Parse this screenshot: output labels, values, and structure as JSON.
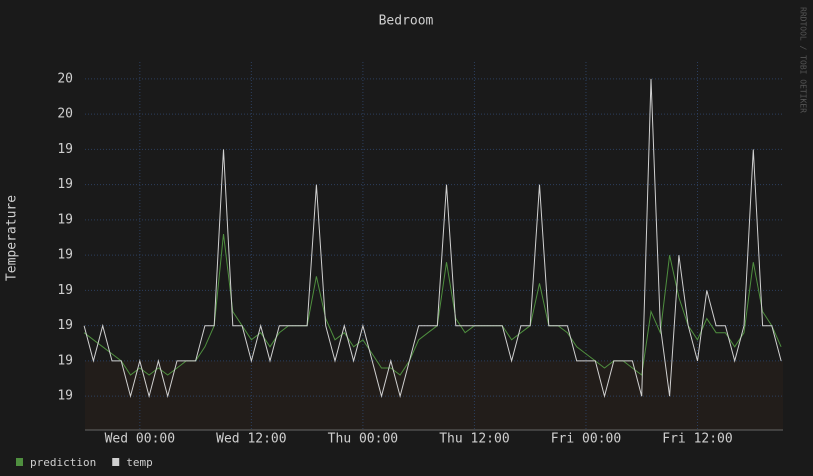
{
  "chart_data": {
    "type": "line",
    "title": "Bedroom",
    "y_label": "Temperature",
    "watermark": "RRDTOOL / TOBI OETIKER",
    "x": [
      -6,
      -5,
      -4,
      -3,
      -2,
      -1,
      0,
      1,
      2,
      3,
      4,
      5,
      6,
      7,
      8,
      9,
      10,
      11,
      12,
      13,
      14,
      15,
      16,
      17,
      18,
      19,
      20,
      21,
      22,
      23,
      24,
      25,
      26,
      27,
      28,
      29,
      30,
      31,
      32,
      33,
      34,
      35,
      36,
      37,
      38,
      39,
      40,
      41,
      42,
      43,
      44,
      45,
      46,
      47,
      48,
      49,
      50,
      51,
      52,
      53,
      54,
      55,
      56,
      57,
      58,
      59,
      60,
      61,
      62,
      63,
      64,
      65,
      66,
      67,
      68,
      69
    ],
    "series": [
      {
        "name": "prediction",
        "color": "#4f8f3f",
        "values": [
          19.19,
          19.18,
          19.17,
          19.16,
          19.15,
          19.13,
          19.14,
          19.13,
          19.14,
          19.13,
          19.14,
          19.15,
          19.15,
          19.17,
          19.2,
          19.33,
          19.22,
          19.2,
          19.18,
          19.19,
          19.17,
          19.19,
          19.2,
          19.2,
          19.2,
          19.27,
          19.21,
          19.18,
          19.19,
          19.17,
          19.18,
          19.16,
          19.14,
          19.14,
          19.13,
          19.15,
          19.18,
          19.19,
          19.2,
          19.29,
          19.21,
          19.19,
          19.2,
          19.2,
          19.2,
          19.2,
          19.18,
          19.19,
          19.2,
          19.26,
          19.2,
          19.2,
          19.19,
          19.17,
          19.16,
          19.15,
          19.14,
          19.15,
          19.15,
          19.14,
          19.13,
          19.22,
          19.19,
          19.3,
          19.24,
          19.2,
          19.18,
          19.21,
          19.19,
          19.19,
          19.17,
          19.19,
          19.29,
          19.22,
          19.2,
          19.17
        ]
      },
      {
        "name": "temp",
        "color": "#d0d0d0",
        "values": [
          19.2,
          19.15,
          19.2,
          19.15,
          19.15,
          19.1,
          19.15,
          19.1,
          19.15,
          19.1,
          19.15,
          19.15,
          19.15,
          19.2,
          19.2,
          19.45,
          19.2,
          19.2,
          19.15,
          19.2,
          19.15,
          19.2,
          19.2,
          19.2,
          19.2,
          19.4,
          19.2,
          19.15,
          19.2,
          19.15,
          19.2,
          19.15,
          19.1,
          19.15,
          19.1,
          19.15,
          19.2,
          19.2,
          19.2,
          19.4,
          19.2,
          19.2,
          19.2,
          19.2,
          19.2,
          19.2,
          19.15,
          19.2,
          19.2,
          19.4,
          19.2,
          19.2,
          19.2,
          19.15,
          19.15,
          19.15,
          19.1,
          19.15,
          19.15,
          19.15,
          19.1,
          19.55,
          19.2,
          19.1,
          19.3,
          19.2,
          19.15,
          19.25,
          19.2,
          19.2,
          19.15,
          19.2,
          19.45,
          19.2,
          19.2,
          19.15
        ]
      }
    ],
    "xlim": [
      -5.9,
      69.2
    ],
    "xticks": [
      {
        "value": 0,
        "label": "Wed 00:00"
      },
      {
        "value": 12,
        "label": "Wed 12:00"
      },
      {
        "value": 24,
        "label": "Thu 00:00"
      },
      {
        "value": 36,
        "label": "Thu 12:00"
      },
      {
        "value": 48,
        "label": "Fri 00:00"
      },
      {
        "value": 60,
        "label": "Fri 12:00"
      }
    ],
    "ylim": [
      19.052,
      19.574
    ],
    "yticks": [
      {
        "value": 19.1,
        "label": "19"
      },
      {
        "value": 19.15,
        "label": "19"
      },
      {
        "value": 19.2,
        "label": "19"
      },
      {
        "value": 19.25,
        "label": "19"
      },
      {
        "value": 19.3,
        "label": "19"
      },
      {
        "value": 19.35,
        "label": "19"
      },
      {
        "value": 19.4,
        "label": "19"
      },
      {
        "value": 19.45,
        "label": "19"
      },
      {
        "value": 19.5,
        "label": "20"
      },
      {
        "value": 19.55,
        "label": "20"
      }
    ],
    "grid": true
  }
}
